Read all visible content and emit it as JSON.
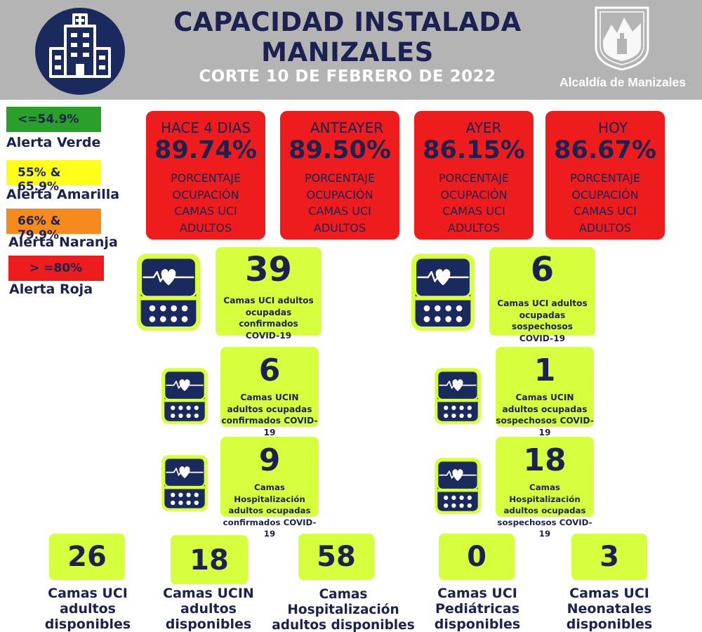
{
  "header": {
    "title_line1": "CAPACIDAD INSTALADA",
    "title_line2": "MANIZALES",
    "subtitle": "CORTE 10 DE FEBRERO DE 2022",
    "org_label": "Alcaldía de Manizales",
    "logo_icon": "hospital-icon",
    "seal_icon": "city-seal-icon"
  },
  "colors": {
    "header_bg": "#b4b4b4",
    "navy": "#1b2150",
    "red": "#ee1c1c",
    "lime": "#d6ff3d",
    "green": "#2aa02a",
    "yellow": "#ffff1a",
    "orange": "#f58a1e"
  },
  "legend": [
    {
      "range": "<=54.9%",
      "label": "Alerta Verde",
      "color": "#2aa02a"
    },
    {
      "range": "55% & 65.9%",
      "label": "Alerta Amarilla",
      "color": "#ffff1a"
    },
    {
      "range": "66% & 79.9%",
      "label": "Alerta Naranja",
      "color": "#f58a1e"
    },
    {
      "range": "> =80%",
      "label": "Alerta Roja",
      "color": "#ee1c1c"
    }
  ],
  "occupancy": [
    {
      "when": "HACE 4 DIAS",
      "pct": "89.74%",
      "desc1": "PORCENTAJE",
      "desc2": "OCUPACIÓN",
      "desc3": "CAMAS UCI",
      "desc4": "ADULTOS"
    },
    {
      "when": "ANTEAYER",
      "pct": "89.50%",
      "desc1": "PORCENTAJE",
      "desc2": "OCUPACIÓN",
      "desc3": "CAMAS UCI",
      "desc4": "ADULTOS"
    },
    {
      "when": "AYER",
      "pct": "86.15%",
      "desc1": "PORCENTAJE",
      "desc2": "OCUPACIÓN",
      "desc3": "CAMAS UCI",
      "desc4": "ADULTOS"
    },
    {
      "when": "HOY",
      "pct": "86.67%",
      "desc1": "PORCENTAJE",
      "desc2": "OCUPACIÓN",
      "desc3": "CAMAS UCI",
      "desc4": "ADULTOS"
    }
  ],
  "stats": {
    "uci_confirmed": {
      "value": "39",
      "l1": "Camas UCI adultos",
      "l2": "ocupadas confirmados",
      "l3": "COVID-19"
    },
    "uci_suspected": {
      "value": "6",
      "l1": "Camas UCI adultos",
      "l2": "ocupadas sospechosos",
      "l3": "COVID-19"
    },
    "ucin_confirmed": {
      "value": "6",
      "l1": "Camas  UCIN",
      "l2": "adultos ocupadas",
      "l3": "confirmados COVID-19"
    },
    "ucin_suspected": {
      "value": "1",
      "l1": "Camas  UCIN",
      "l2": "adultos ocupadas",
      "l3": "sospechosos COVID-19"
    },
    "hosp_confirmed": {
      "value": "9",
      "l1": "Camas  Hospitalización",
      "l2": "adultos ocupadas",
      "l3": "confirmados COVID-19"
    },
    "hosp_suspected": {
      "value": "18",
      "l1": "Camas  Hospitalización",
      "l2": "adultos ocupadas",
      "l3": "sospechosos COVID-19"
    }
  },
  "available": [
    {
      "value": "26",
      "l1": "Camas UCI",
      "l2": "adultos",
      "l3": "disponibles"
    },
    {
      "value": "18",
      "l1": "Camas UCIN",
      "l2": "adultos",
      "l3": "disponibles"
    },
    {
      "value": "58",
      "l1": "Camas  Hospitalización",
      "l2": "adultos disponibles",
      "l3": ""
    },
    {
      "value": "0",
      "l1": "Camas  UCI",
      "l2": "Pediátricas",
      "l3": "disponibles"
    },
    {
      "value": "3",
      "l1": "Camas  UCI",
      "l2": "Neonatales",
      "l3": "disponibles"
    }
  ],
  "monitor_icon": "heart-monitor-icon"
}
